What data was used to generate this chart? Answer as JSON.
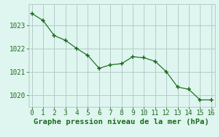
{
  "x": [
    0,
    1,
    2,
    3,
    4,
    5,
    6,
    7,
    8,
    9,
    10,
    11,
    12,
    13,
    14,
    15,
    16
  ],
  "y": [
    1023.5,
    1023.2,
    1022.55,
    1022.35,
    1022.0,
    1021.7,
    1021.15,
    1021.3,
    1021.35,
    1021.65,
    1021.6,
    1021.45,
    1021.0,
    1020.35,
    1020.25,
    1019.8,
    1019.8
  ],
  "bg_color": "#dff5f0",
  "grid_color": "#b0c8c4",
  "line_color": "#1a6b1a",
  "marker_color": "#1a6b1a",
  "xlabel": "Graphe pression niveau de la mer (hPa)",
  "xlabel_color": "#1a6b1a",
  "ylim": [
    1019.5,
    1023.9
  ],
  "yticks": [
    1020,
    1021,
    1022,
    1023
  ],
  "xticks": [
    0,
    1,
    2,
    3,
    4,
    5,
    6,
    7,
    8,
    9,
    10,
    11,
    12,
    13,
    14,
    15,
    16
  ],
  "tick_color": "#1a6b1a",
  "font_size": 7.0,
  "xlabel_font_size": 8.0
}
